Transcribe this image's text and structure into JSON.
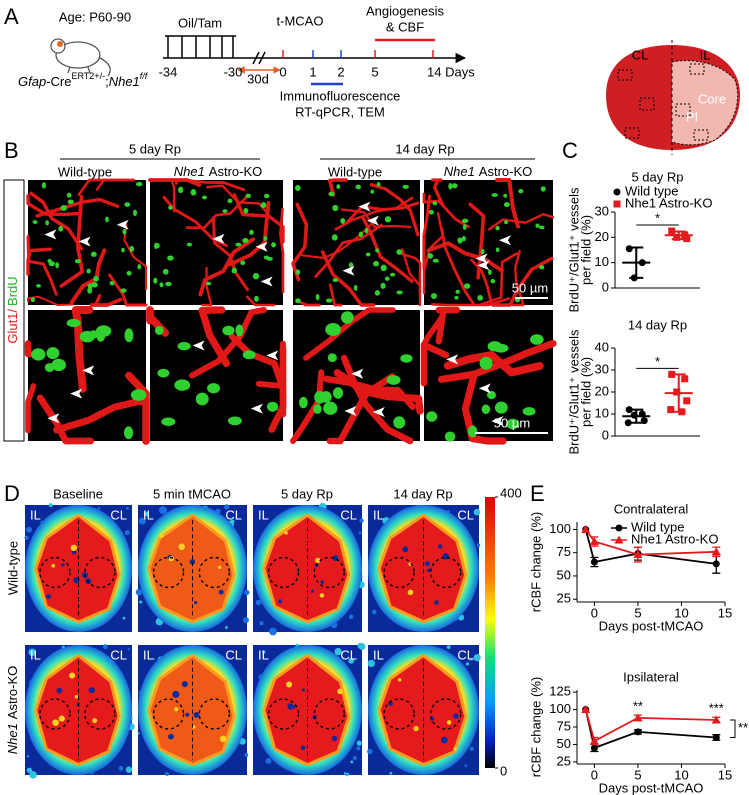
{
  "panel_labels": [
    "A",
    "B",
    "C",
    "D",
    "E"
  ],
  "timeline": {
    "age": "Age: P60-90",
    "genotype": {
      "gene1": "Gfap",
      "cre": "-Cre",
      "allele1": "ERT2+/-",
      "sep": ";",
      "gene2": "Nhe1",
      "allele2": "f/f"
    },
    "treatment": "Oil/Tam",
    "stroke": "t-MCAO",
    "readout": [
      "Angiogenesis",
      "& CBF"
    ],
    "days": [
      "-34",
      "-30",
      "0",
      "1",
      "2",
      "5",
      "14 Days"
    ],
    "interval": "30d",
    "assays": [
      "Immunofluorescence",
      "RT-qPCR, TEM"
    ],
    "brain_labels": {
      "cl": "CL",
      "il": "IL",
      "core": "Core",
      "pi": "PI"
    }
  },
  "histology": {
    "timepoints": [
      "5 day Rp",
      "14 day Rp"
    ],
    "wild_type": "Wild-type",
    "ko_gene": "Nhe1",
    "ko_suffix": "Astro-KO",
    "stain": [
      "Glut1/",
      "BrdU"
    ],
    "scale_bar": "50 µm"
  },
  "cbf_images": {
    "columns": [
      "Baseline",
      "5 min tMCAO",
      "5 day Rp",
      "14 day Rp"
    ],
    "wild_type": "Wild-type",
    "ko_gene": "Nhe1",
    "ko_suffix": "Astro-KO",
    "hemispheres": [
      "IL",
      "CL"
    ],
    "colorbar": {
      "lim": [
        0,
        400
      ],
      "ticks": [
        0,
        400
      ]
    }
  },
  "chart_data": [
    {
      "type": "dotplot",
      "title": "5 day Rp",
      "ylabel": [
        "BrdU⁺/Glut1⁺ vessels",
        "per field (%)"
      ],
      "ylim": [
        0,
        30
      ],
      "yticks": [
        0,
        10,
        20,
        30
      ],
      "legend": true,
      "annotations": [
        "*"
      ],
      "series": [
        {
          "name": "Wild type",
          "color": "#000000",
          "marker": "circle",
          "values": [
            15.5,
            10,
            4
          ],
          "mean": 10,
          "error": 6
        },
        {
          "name": "Nhe1 Astro-KO",
          "color": "#e41a1c",
          "marker": "square",
          "values": [
            22.5,
            21,
            20,
            19.5
          ],
          "mean": 20.8,
          "error": 1.5
        }
      ]
    },
    {
      "type": "dotplot",
      "title": "14 day Rp",
      "ylabel": [
        "BrdU⁺/Glut1⁺ vessels",
        "per field (%)"
      ],
      "ylim": [
        0,
        40
      ],
      "yticks": [
        0,
        10,
        20,
        30,
        40
      ],
      "legend": false,
      "annotations": [
        "*"
      ],
      "series": [
        {
          "name": "Wild type",
          "color": "#000000",
          "marker": "circle",
          "values": [
            12,
            10,
            9.5,
            7,
            6
          ],
          "mean": 9,
          "error": 3
        },
        {
          "name": "Nhe1 Astro-KO",
          "color": "#e41a1c",
          "marker": "square",
          "values": [
            28,
            26,
            20,
            16,
            12,
            11
          ],
          "mean": 19.5,
          "error": 8.5
        }
      ]
    },
    {
      "type": "line",
      "title": "Contralateral",
      "ylabel": "rCBF change (%)",
      "xlabel": "Days post-tMCAO",
      "x": [
        -1,
        0,
        5,
        14
      ],
      "xlim": [
        -2,
        15
      ],
      "xticks": [
        0,
        5,
        10,
        15
      ],
      "ylim": [
        22,
        108
      ],
      "yticks": [
        25,
        50,
        75,
        100
      ],
      "legend": true,
      "annotations": [],
      "series": [
        {
          "name": "Wild type",
          "color": "#000000",
          "marker": "circle",
          "values": [
            100,
            65,
            74,
            63
          ],
          "errors": [
            null,
            5,
            7,
            10
          ]
        },
        {
          "name": "Nhe1 Astro-KO",
          "color": "#e41a1c",
          "marker": "triangle",
          "values": [
            100,
            87,
            73,
            76
          ],
          "errors": [
            null,
            5,
            8,
            5
          ]
        }
      ]
    },
    {
      "type": "line",
      "title": "Ipsilateral",
      "ylabel": "rCBF change (%)",
      "xlabel": "Days post-tMCAO",
      "x": [
        -1,
        0,
        5,
        14
      ],
      "xlim": [
        -2,
        15
      ],
      "xticks": [
        0,
        5,
        10,
        15
      ],
      "ylim": [
        22,
        128
      ],
      "yticks": [
        25,
        50,
        75,
        100,
        125
      ],
      "legend": false,
      "annotations": [
        "**",
        "***",
        "**"
      ],
      "series": [
        {
          "name": "Wild type",
          "color": "#000000",
          "marker": "circle",
          "values": [
            100,
            45,
            68,
            60
          ],
          "errors": [
            null,
            5,
            3,
            4
          ]
        },
        {
          "name": "Nhe1 Astro-KO",
          "color": "#e41a1c",
          "marker": "triangle",
          "values": [
            100,
            55,
            88,
            85
          ],
          "errors": [
            null,
            5,
            4,
            4
          ]
        }
      ]
    }
  ]
}
